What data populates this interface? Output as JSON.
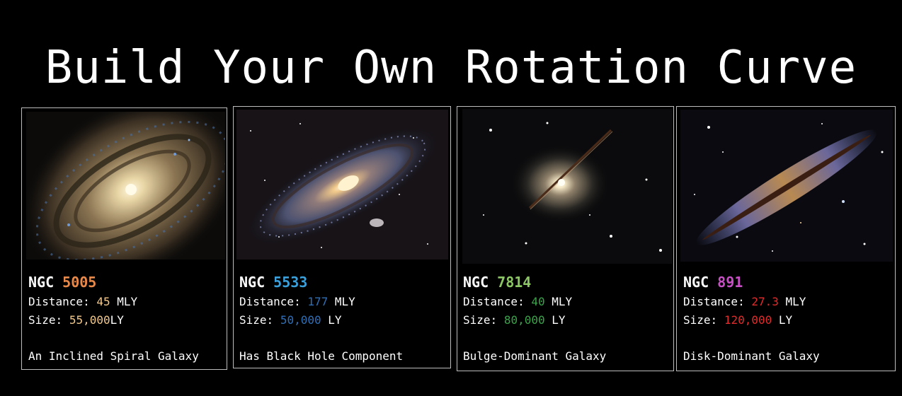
{
  "title": "Build Your Own Rotation Curve",
  "cards": [
    {
      "prefix": "NGC",
      "number": "5005",
      "distance_label": "Distance:",
      "distance_value": "45",
      "distance_unit": "MLY",
      "size_label": "Size:",
      "size_value": "55,000",
      "size_unit": "LY",
      "description": "An Inclined Spiral Galaxy",
      "accent": "#e8894a",
      "value_color": "#f3c98b"
    },
    {
      "prefix": "NGC",
      "number": "5533",
      "distance_label": "Distance:",
      "distance_value": "177",
      "distance_unit": "MLY",
      "size_label": "Size:",
      "size_value": "50,000",
      "size_unit": "LY",
      "description": "Has Black Hole Component",
      "accent": "#3aa0dc",
      "value_color": "#2f6fb6"
    },
    {
      "prefix": "NGC",
      "number": "7814",
      "distance_label": "Distance:",
      "distance_value": "40",
      "distance_unit": "MLY",
      "size_label": "Size:",
      "size_value": "80,000",
      "size_unit": "LY",
      "description": "Bulge-Dominant Galaxy",
      "accent": "#8cc665",
      "value_color": "#3aa34a"
    },
    {
      "prefix": "NGC",
      "number": "891",
      "distance_label": "Distance:",
      "distance_value": "27.3",
      "distance_unit": "MLY",
      "size_label": "Size:",
      "size_value": "120,000",
      "size_unit": "LY",
      "description": "Disk-Dominant Galaxy",
      "accent": "#c64fc4",
      "value_color": "#e22b2b"
    }
  ]
}
